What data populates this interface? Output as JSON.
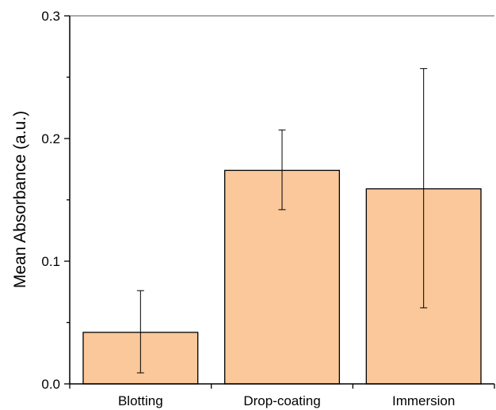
{
  "chart_data": {
    "type": "bar",
    "title": "",
    "xlabel": "",
    "ylabel": "Mean Absorbance (a.u.)",
    "ylim": [
      0,
      0.3
    ],
    "yticks": [
      "0.0",
      "0.1",
      "0.2",
      "0.3"
    ],
    "categories": [
      "Blotting",
      "Drop-coating",
      "Immersion"
    ],
    "values": [
      0.042,
      0.174,
      0.159
    ],
    "error_low": [
      0.009,
      0.142,
      0.062
    ],
    "error_high": [
      0.076,
      0.207,
      0.257
    ],
    "grid": false,
    "legend": "none",
    "colors": {
      "bar_fill": "#FAC89A",
      "bar_stroke": "#000000",
      "axis": "#000000",
      "top_line": "#555555"
    }
  }
}
